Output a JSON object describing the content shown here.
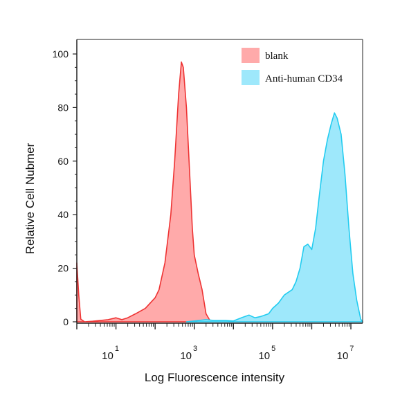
{
  "chart_data": {
    "type": "area",
    "xlabel": "Log Fluorescence intensity",
    "ylabel": "Relative Cell Nubmer",
    "x_scale": "log10",
    "xlim_log10": [
      0,
      7.3
    ],
    "ylim": [
      0,
      100
    ],
    "x_ticks": [
      {
        "base": "10",
        "exp": "1",
        "log10": 1
      },
      {
        "base": "10",
        "exp": "3",
        "log10": 3
      },
      {
        "base": "10",
        "exp": "5",
        "log10": 5
      },
      {
        "base": "10",
        "exp": "7",
        "log10": 7
      }
    ],
    "y_ticks": [
      0,
      20,
      40,
      60,
      80,
      100
    ],
    "legend_position": "top-right",
    "grid": false,
    "series": [
      {
        "name": "blank",
        "fill": "#ffaaaa",
        "stroke": "#ee3333",
        "points": [
          [
            0.0,
            22
          ],
          [
            0.05,
            10
          ],
          [
            0.1,
            1
          ],
          [
            0.2,
            0
          ],
          [
            0.4,
            0.2
          ],
          [
            0.8,
            0.8
          ],
          [
            1.0,
            1.5
          ],
          [
            1.15,
            0.8
          ],
          [
            1.3,
            1.5
          ],
          [
            1.5,
            3
          ],
          [
            1.75,
            5
          ],
          [
            2.0,
            9
          ],
          [
            2.1,
            12
          ],
          [
            2.25,
            22
          ],
          [
            2.4,
            40
          ],
          [
            2.5,
            60
          ],
          [
            2.6,
            85
          ],
          [
            2.67,
            97
          ],
          [
            2.72,
            95
          ],
          [
            2.8,
            80
          ],
          [
            2.9,
            50
          ],
          [
            2.95,
            35
          ],
          [
            3.0,
            25
          ],
          [
            3.1,
            18
          ],
          [
            3.2,
            12
          ],
          [
            3.3,
            3
          ],
          [
            3.4,
            0.5
          ],
          [
            3.6,
            0
          ],
          [
            7.3,
            0
          ]
        ]
      },
      {
        "name": "Anti-human CD34",
        "fill": "#9ee8fb",
        "stroke": "#22ccf0",
        "points": [
          [
            2.8,
            0
          ],
          [
            3.0,
            0.3
          ],
          [
            3.3,
            0.8
          ],
          [
            3.5,
            0.5
          ],
          [
            3.8,
            0.5
          ],
          [
            4.0,
            0.3
          ],
          [
            4.2,
            1.5
          ],
          [
            4.4,
            2.5
          ],
          [
            4.55,
            1.5
          ],
          [
            4.7,
            2
          ],
          [
            4.9,
            3
          ],
          [
            5.0,
            5
          ],
          [
            5.15,
            7
          ],
          [
            5.3,
            10
          ],
          [
            5.5,
            12
          ],
          [
            5.6,
            15
          ],
          [
            5.7,
            20
          ],
          [
            5.8,
            28
          ],
          [
            5.9,
            29
          ],
          [
            6.0,
            27
          ],
          [
            6.1,
            35
          ],
          [
            6.2,
            48
          ],
          [
            6.3,
            60
          ],
          [
            6.4,
            68
          ],
          [
            6.5,
            74
          ],
          [
            6.58,
            78
          ],
          [
            6.65,
            76
          ],
          [
            6.75,
            70
          ],
          [
            6.85,
            55
          ],
          [
            6.95,
            35
          ],
          [
            7.05,
            18
          ],
          [
            7.15,
            8
          ],
          [
            7.25,
            1
          ],
          [
            7.3,
            0
          ]
        ]
      }
    ]
  }
}
